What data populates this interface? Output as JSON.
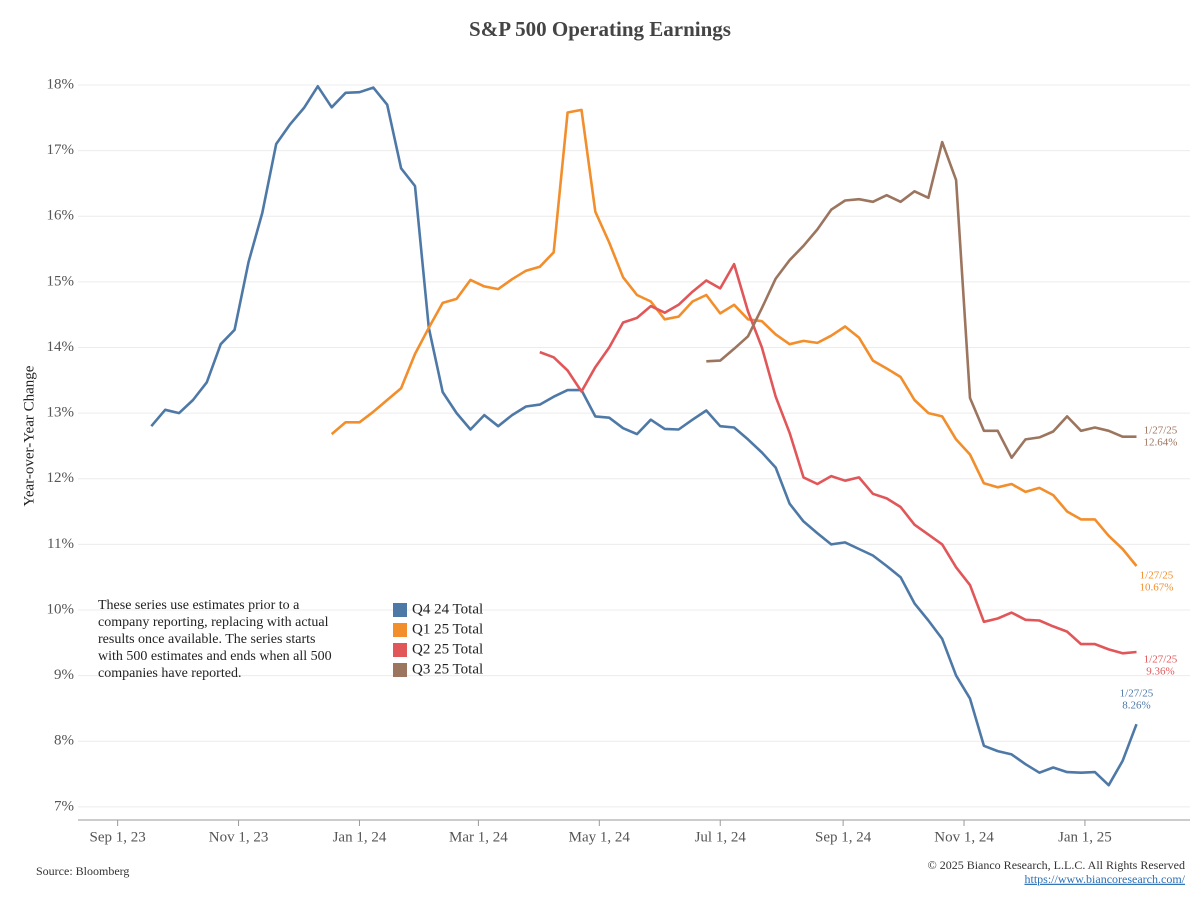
{
  "chart_data": {
    "type": "line",
    "title": "S&P 500 Operating Earnings",
    "y_label": "Year-over-Year Change",
    "note": [
      "These series use estimates prior to a",
      "company reporting, replacing with actual",
      "results once available. The series starts",
      "with 500 estimates and ends when all 500",
      "companies have reported."
    ],
    "source": "Source: Bloomberg",
    "copyright": "© 2025 Bianco Research, L.L.C. All Rights Reserved",
    "url": "https://www.biancoresearch.com/",
    "xlim": [
      "2023-08-12",
      "2025-02-23"
    ],
    "xticks": [
      {
        "value": "2023-09-01",
        "label": "Sep 1, 23"
      },
      {
        "value": "2023-11-01",
        "label": "Nov 1, 23"
      },
      {
        "value": "2024-01-01",
        "label": "Jan 1, 24"
      },
      {
        "value": "2024-03-01",
        "label": "Mar 1, 24"
      },
      {
        "value": "2024-05-01",
        "label": "May 1, 24"
      },
      {
        "value": "2024-07-01",
        "label": "Jul 1, 24"
      },
      {
        "value": "2024-09-01",
        "label": "Sep 1, 24"
      },
      {
        "value": "2024-11-01",
        "label": "Nov 1, 24"
      },
      {
        "value": "2025-01-01",
        "label": "Jan 1, 25"
      }
    ],
    "ylim": [
      6.8,
      18.35
    ],
    "yticks": [
      {
        "value": 7,
        "label": "7%"
      },
      {
        "value": 8,
        "label": "8%"
      },
      {
        "value": 9,
        "label": "9%"
      },
      {
        "value": 10,
        "label": "10%"
      },
      {
        "value": 11,
        "label": "11%"
      },
      {
        "value": 12,
        "label": "12%"
      },
      {
        "value": 13,
        "label": "13%"
      },
      {
        "value": 14,
        "label": "14%"
      },
      {
        "value": 15,
        "label": "15%"
      },
      {
        "value": 16,
        "label": "16%"
      },
      {
        "value": 17,
        "label": "17%"
      },
      {
        "value": 18,
        "label": "18%"
      }
    ],
    "grid": true,
    "x": [
      "2023-09-18",
      "2023-09-25",
      "2023-10-02",
      "2023-10-09",
      "2023-10-16",
      "2023-10-23",
      "2023-10-30",
      "2023-11-06",
      "2023-11-13",
      "2023-11-20",
      "2023-11-27",
      "2023-12-04",
      "2023-12-11",
      "2023-12-18",
      "2023-12-25",
      "2024-01-01",
      "2024-01-08",
      "2024-01-15",
      "2024-01-22",
      "2024-01-29",
      "2024-02-05",
      "2024-02-12",
      "2024-02-19",
      "2024-02-26",
      "2024-03-04",
      "2024-03-11",
      "2024-03-18",
      "2024-03-25",
      "2024-04-01",
      "2024-04-08",
      "2024-04-15",
      "2024-04-22",
      "2024-04-29",
      "2024-05-06",
      "2024-05-13",
      "2024-05-20",
      "2024-05-27",
      "2024-06-03",
      "2024-06-10",
      "2024-06-17",
      "2024-06-24",
      "2024-07-01",
      "2024-07-08",
      "2024-07-15",
      "2024-07-22",
      "2024-07-29",
      "2024-08-05",
      "2024-08-12",
      "2024-08-19",
      "2024-08-26",
      "2024-09-02",
      "2024-09-09",
      "2024-09-16",
      "2024-09-23",
      "2024-09-30",
      "2024-10-07",
      "2024-10-14",
      "2024-10-21",
      "2024-10-28",
      "2024-11-04",
      "2024-11-11",
      "2024-11-18",
      "2024-11-25",
      "2024-12-02",
      "2024-12-09",
      "2024-12-16",
      "2024-12-23",
      "2024-12-30",
      "2025-01-06",
      "2025-01-13",
      "2025-01-20",
      "2025-01-27"
    ],
    "series": [
      {
        "name": "Q4 24 Total",
        "color": "#4e79a7",
        "end_date_label": "1/27/25",
        "end_value_label": "8.26%",
        "values": [
          12.8,
          13.05,
          13.0,
          13.2,
          13.47,
          14.05,
          14.27,
          15.3,
          16.05,
          17.1,
          17.4,
          17.65,
          17.98,
          17.66,
          17.88,
          17.89,
          17.96,
          17.7,
          16.73,
          16.46,
          14.3,
          13.32,
          13.0,
          12.75,
          12.97,
          12.8,
          12.97,
          13.1,
          13.13,
          13.25,
          13.35,
          13.35,
          12.95,
          12.93,
          12.77,
          12.68,
          12.9,
          12.76,
          12.75,
          12.9,
          13.04,
          12.8,
          12.78,
          12.6,
          12.4,
          12.17,
          11.62,
          11.35,
          11.17,
          11.0,
          11.03,
          10.93,
          10.83,
          10.67,
          10.5,
          10.1,
          9.84,
          9.56,
          9.0,
          8.65,
          7.93,
          7.85,
          7.8,
          7.65,
          7.52,
          7.6,
          7.53,
          7.52,
          7.53,
          7.33,
          7.7,
          8.26
        ]
      },
      {
        "name": "Q1 25 Total",
        "color": "#f28e2b",
        "end_date_label": "1/27/25",
        "end_value_label": "10.67%",
        "values": [
          null,
          null,
          null,
          null,
          null,
          null,
          null,
          null,
          null,
          null,
          null,
          null,
          null,
          12.68,
          12.86,
          12.86,
          13.02,
          13.2,
          13.38,
          13.9,
          14.3,
          14.68,
          14.74,
          15.03,
          14.93,
          14.89,
          15.04,
          15.17,
          15.23,
          15.45,
          17.58,
          17.62,
          16.07,
          15.6,
          15.07,
          14.8,
          14.7,
          14.43,
          14.47,
          14.7,
          14.8,
          14.52,
          14.65,
          14.43,
          14.4,
          14.2,
          14.05,
          14.1,
          14.07,
          14.18,
          14.32,
          14.15,
          13.8,
          13.68,
          13.55,
          13.2,
          13.0,
          12.95,
          12.6,
          12.37,
          11.93,
          11.87,
          11.92,
          11.8,
          11.86,
          11.75,
          11.5,
          11.38,
          11.38,
          11.13,
          10.93,
          10.67
        ]
      },
      {
        "name": "Q2 25 Total",
        "color": "#e15759",
        "end_date_label": "1/27/25",
        "end_value_label": "9.36%",
        "values": [
          null,
          null,
          null,
          null,
          null,
          null,
          null,
          null,
          null,
          null,
          null,
          null,
          null,
          null,
          null,
          null,
          null,
          null,
          null,
          null,
          null,
          null,
          null,
          null,
          null,
          null,
          null,
          null,
          13.93,
          13.85,
          13.65,
          13.33,
          13.7,
          14.0,
          14.38,
          14.45,
          14.63,
          14.53,
          14.65,
          14.85,
          15.02,
          14.9,
          15.27,
          14.55,
          14.0,
          13.25,
          12.7,
          12.02,
          11.92,
          12.04,
          11.97,
          12.02,
          11.77,
          11.7,
          11.57,
          11.3,
          11.15,
          11.0,
          10.65,
          10.38,
          9.82,
          9.87,
          9.96,
          9.85,
          9.84,
          9.75,
          9.67,
          9.48,
          9.48,
          9.4,
          9.34,
          9.36
        ]
      },
      {
        "name": "Q3 25 Total",
        "color": "#9c755f",
        "end_date_label": "1/27/25",
        "end_value_label": "12.64%",
        "values": [
          null,
          null,
          null,
          null,
          null,
          null,
          null,
          null,
          null,
          null,
          null,
          null,
          null,
          null,
          null,
          null,
          null,
          null,
          null,
          null,
          null,
          null,
          null,
          null,
          null,
          null,
          null,
          null,
          null,
          null,
          null,
          null,
          null,
          null,
          null,
          null,
          null,
          null,
          null,
          null,
          13.79,
          13.8,
          13.98,
          14.17,
          14.6,
          15.05,
          15.33,
          15.55,
          15.8,
          16.1,
          16.24,
          16.26,
          16.22,
          16.32,
          16.22,
          16.38,
          16.28,
          17.13,
          16.55,
          13.23,
          12.73,
          12.73,
          12.32,
          12.6,
          12.63,
          12.72,
          12.95,
          12.73,
          12.78,
          12.73,
          12.64,
          12.64
        ]
      }
    ]
  }
}
